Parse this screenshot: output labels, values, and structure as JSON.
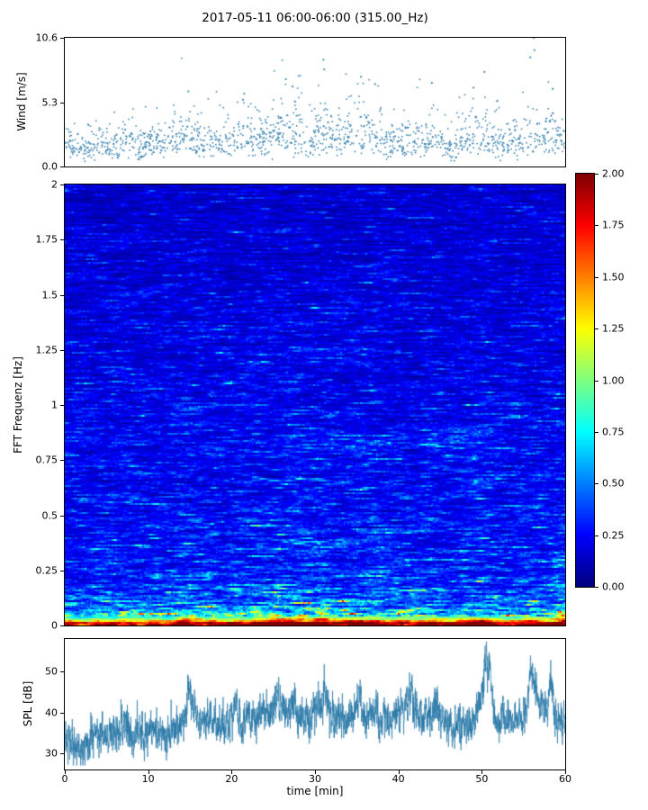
{
  "page": {
    "title": "2017-05-11 06:00-06:00 (315.00_Hz)"
  },
  "chart_data": [
    {
      "type": "scatter",
      "panel": "wind",
      "ylabel": "Wind [m/s]",
      "yticks": [
        0.0,
        5.3,
        10.6
      ],
      "ytick_labels": [
        "0.0",
        "5.3",
        "10.6"
      ],
      "ylim": [
        0,
        10.6
      ],
      "xlim": [
        0,
        60
      ],
      "marker_color": "#2878a8",
      "points_per_minute": 24,
      "noise_sigma": 0.45,
      "minute_mean": [
        2.3,
        1.7,
        1.5,
        1.6,
        1.8,
        2.0,
        1.7,
        2.1,
        1.9,
        1.6,
        2.0,
        2.2,
        1.8,
        2.1,
        2.6,
        2.4,
        2.0,
        1.8,
        2.2,
        1.9,
        2.0,
        2.3,
        2.1,
        2.5,
        2.2,
        2.6,
        2.8,
        2.6,
        2.9,
        2.4,
        2.6,
        3.0,
        2.4,
        2.2,
        2.6,
        2.8,
        2.7,
        2.8,
        2.2,
        2.0,
        2.4,
        2.2,
        2.0,
        2.2,
        2.4,
        2.1,
        1.6,
        1.8,
        2.2,
        2.6,
        2.8,
        2.2,
        2.0,
        1.8,
        2.0,
        2.3,
        2.7,
        2.2,
        2.4,
        2.2,
        2.0
      ],
      "outliers": [
        [
          14.8,
          6.2
        ],
        [
          21.5,
          6.0
        ],
        [
          26.5,
          7.2
        ],
        [
          27.3,
          6.6
        ],
        [
          31.0,
          8.8
        ],
        [
          31.1,
          8.0
        ],
        [
          35.5,
          7.4
        ],
        [
          37.2,
          6.8
        ],
        [
          44.0,
          6.9
        ],
        [
          49.0,
          6.5
        ],
        [
          50.3,
          7.8
        ],
        [
          55.8,
          9.0
        ],
        [
          56.2,
          10.6
        ],
        [
          56.3,
          9.6
        ],
        [
          58.5,
          6.4
        ]
      ]
    },
    {
      "type": "heatmap",
      "panel": "spectrogram",
      "ylabel": "FFT Frequenz [Hz]",
      "yticks": [
        0,
        0.25,
        0.5,
        0.75,
        1,
        1.25,
        1.5,
        1.75,
        2
      ],
      "ytick_labels": [
        "0",
        "0.25",
        "0.5",
        "0.75",
        "1",
        "1.25",
        "1.5",
        "1.75",
        "2"
      ],
      "ylim": [
        0,
        2
      ],
      "xlim": [
        0,
        60
      ],
      "colormap": "jet",
      "vmin": 0,
      "vmax": 2,
      "cols": 278,
      "rows": 245,
      "noise_sigma": 0.38,
      "freq_profile": [
        [
          0.0,
          1.95
        ],
        [
          0.012,
          1.7
        ],
        [
          0.022,
          1.25
        ],
        [
          0.035,
          0.9
        ],
        [
          0.05,
          0.68
        ],
        [
          0.07,
          0.52
        ],
        [
          0.1,
          0.42
        ],
        [
          0.15,
          0.35
        ],
        [
          0.22,
          0.3
        ],
        [
          0.35,
          0.27
        ],
        [
          0.55,
          0.24
        ],
        [
          0.8,
          0.23
        ],
        [
          1.0,
          0.21
        ],
        [
          1.3,
          0.19
        ],
        [
          1.6,
          0.17
        ],
        [
          2.0,
          0.15
        ]
      ],
      "time_mod": [
        1.0,
        0.9,
        0.85,
        0.9,
        1.0,
        0.95,
        1.0,
        1.05,
        0.95,
        0.9,
        1.0,
        1.05,
        0.95,
        1.1,
        1.35,
        1.3,
        1.1,
        1.0,
        1.1,
        1.0,
        1.05,
        1.15,
        1.1,
        1.25,
        1.2,
        1.3,
        1.35,
        1.3,
        1.35,
        1.2,
        1.25,
        1.4,
        1.15,
        1.1,
        1.2,
        1.25,
        1.2,
        1.25,
        1.1,
        1.0,
        1.15,
        1.1,
        1.0,
        1.05,
        1.15,
        1.05,
        0.95,
        1.0,
        1.1,
        1.25,
        1.3,
        1.1,
        1.0,
        0.95,
        1.0,
        1.1,
        1.3,
        1.15,
        1.2,
        1.4,
        1.5
      ],
      "bands": [
        {
          "freq": 0.85,
          "width": 0.05,
          "amp": 0.1,
          "t_center": 46,
          "t_width": 9
        },
        {
          "freq": 0.8,
          "width": 0.04,
          "amp": 0.06,
          "t_center": 25,
          "t_width": 8
        }
      ],
      "colorbar": {
        "tick_values": [
          0,
          0.25,
          0.5,
          0.75,
          1.0,
          1.25,
          1.5,
          1.75,
          2.0
        ],
        "tick_labels": [
          "0.00",
          "0.25",
          "0.50",
          "0.75",
          "1.00",
          "1.25",
          "1.50",
          "1.75",
          "2.00"
        ]
      }
    },
    {
      "type": "line",
      "panel": "spl",
      "ylabel": "SPL [dB]",
      "xlabel": "time [min]",
      "yticks": [
        30,
        40,
        50
      ],
      "ytick_labels": [
        "30",
        "40",
        "50"
      ],
      "ylim": [
        26,
        58
      ],
      "xlim": [
        0,
        60
      ],
      "xticks": [
        0,
        10,
        20,
        30,
        40,
        50,
        60
      ],
      "xtick_labels": [
        "0",
        "10",
        "20",
        "30",
        "40",
        "50",
        "60"
      ],
      "line_color": "#2878a8",
      "points_per_minute": 60,
      "noise_sigma": 2.0,
      "minute_mean": [
        33,
        32,
        31,
        33,
        35,
        34,
        36,
        37,
        35,
        34,
        36,
        35,
        34,
        36,
        38,
        41,
        38,
        37,
        38,
        36,
        38,
        37,
        39,
        38,
        40,
        39,
        40,
        41,
        39,
        40,
        39,
        42,
        39,
        38,
        39,
        40,
        39,
        40,
        39,
        38,
        40,
        42,
        39,
        38,
        40,
        39,
        37,
        36,
        37,
        38,
        44,
        40,
        38,
        37,
        38,
        39,
        45,
        42,
        40,
        38,
        37
      ],
      "spikes": [
        [
          15.0,
          46
        ],
        [
          20.5,
          44
        ],
        [
          25.5,
          45
        ],
        [
          31.3,
          47
        ],
        [
          35.3,
          45
        ],
        [
          41.5,
          46
        ],
        [
          44.5,
          45
        ],
        [
          50.5,
          57
        ],
        [
          51.0,
          48
        ],
        [
          56.0,
          53
        ],
        [
          58.3,
          48
        ]
      ]
    }
  ]
}
